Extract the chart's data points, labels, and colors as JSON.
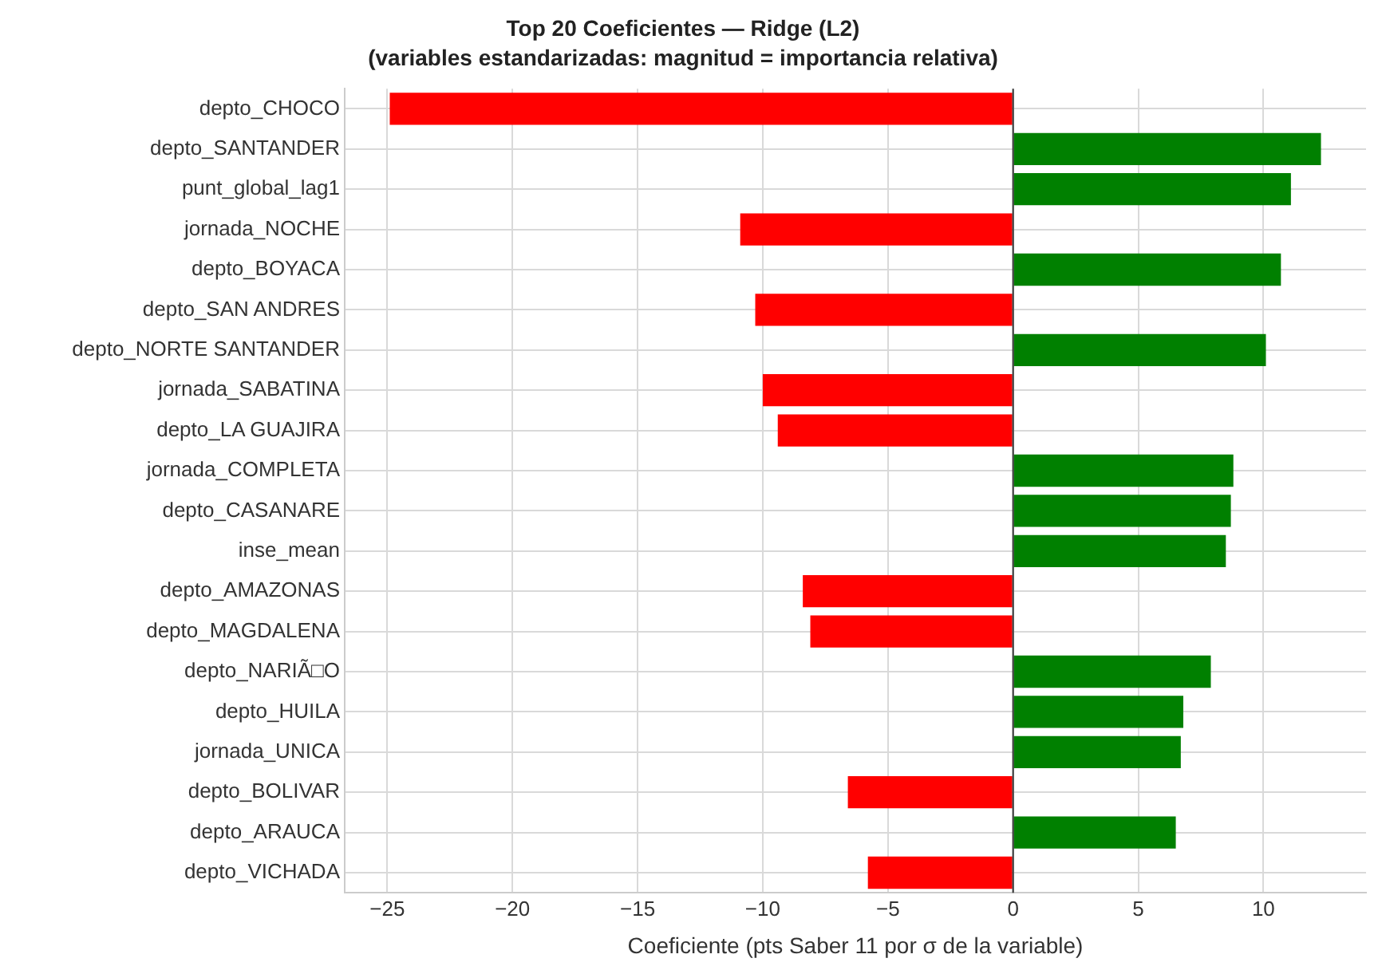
{
  "chart_data": {
    "type": "bar",
    "orientation": "horizontal",
    "title": "Top 20 Coeficientes — Ridge (L2)",
    "subtitle": "(variables estandarizadas: magnitud = importancia relativa)",
    "xlabel": "Coeficiente (pts Saber 11 por σ de la variable)",
    "categories": [
      "depto_CHOCO",
      "depto_SANTANDER",
      "punt_global_lag1",
      "jornada_NOCHE",
      "depto_BOYACA",
      "depto_SAN ANDRES",
      "depto_NORTE SANTANDER",
      "jornada_SABATINA",
      "depto_LA GUAJIRA",
      "jornada_COMPLETA",
      "depto_CASANARE",
      "inse_mean",
      "depto_AMAZONAS",
      "depto_MAGDALENA",
      "depto_NARIÃ□O",
      "depto_HUILA",
      "jornada_UNICA",
      "depto_BOLIVAR",
      "depto_ARAUCA",
      "depto_VICHADA"
    ],
    "values": [
      -24.9,
      12.3,
      11.1,
      -10.9,
      10.7,
      -10.3,
      10.1,
      -10.0,
      -9.4,
      8.8,
      8.7,
      8.5,
      -8.4,
      -8.1,
      7.9,
      6.8,
      6.7,
      -6.6,
      6.5,
      -5.8
    ],
    "colors": [
      "#ff0000",
      "#008000",
      "#008000",
      "#ff0000",
      "#008000",
      "#ff0000",
      "#008000",
      "#ff0000",
      "#ff0000",
      "#008000",
      "#008000",
      "#008000",
      "#ff0000",
      "#ff0000",
      "#008000",
      "#008000",
      "#008000",
      "#ff0000",
      "#008000",
      "#ff0000"
    ],
    "xlim": [
      -26.7,
      14.1
    ],
    "xticks": [
      {
        "value": -25,
        "label": "−25"
      },
      {
        "value": -20,
        "label": "−20"
      },
      {
        "value": -15,
        "label": "−15"
      },
      {
        "value": -10,
        "label": "−10"
      },
      {
        "value": -5,
        "label": "−5"
      },
      0,
      5,
      10
    ],
    "ref_lines": [
      {
        "axis": "x",
        "value": 0,
        "color": "#333333"
      }
    ],
    "grid": true,
    "legend": false
  }
}
